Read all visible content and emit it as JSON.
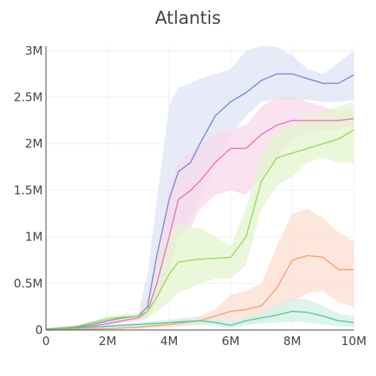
{
  "chart_data": {
    "type": "line",
    "title": "Atlantis",
    "xlabel": "",
    "ylabel": "",
    "xlim": [
      0,
      10000000
    ],
    "ylim": [
      0,
      3050000
    ],
    "grid": true,
    "legend": "none",
    "xticks": [
      {
        "value": 0,
        "label": "0"
      },
      {
        "value": 2000000,
        "label": "2M"
      },
      {
        "value": 4000000,
        "label": "4M"
      },
      {
        "value": 6000000,
        "label": "6M"
      },
      {
        "value": 8000000,
        "label": "8M"
      },
      {
        "value": 10000000,
        "label": "10M"
      }
    ],
    "yticks": [
      {
        "value": 0,
        "label": "0"
      },
      {
        "value": 500000,
        "label": "0.5M"
      },
      {
        "value": 1000000,
        "label": "1M"
      },
      {
        "value": 1500000,
        "label": "1.5M"
      },
      {
        "value": 2000000,
        "label": "2M"
      },
      {
        "value": 2500000,
        "label": "2.5M"
      },
      {
        "value": 3000000,
        "label": "3M"
      }
    ],
    "series": [
      {
        "color": "#7a8fd0",
        "band_color": "#dfe3f4",
        "x": [
          0,
          1000000,
          1500000,
          2000000,
          2500000,
          3000000,
          3300000,
          3600000,
          4000000,
          4300000,
          4700000,
          5000000,
          5500000,
          6000000,
          6500000,
          7000000,
          7500000,
          8000000,
          8500000,
          9000000,
          9500000,
          10000000
        ],
        "mean": [
          10000,
          30000,
          60000,
          100000,
          130000,
          150000,
          250000,
          800000,
          1400000,
          1700000,
          1800000,
          2000000,
          2300000,
          2450000,
          2550000,
          2680000,
          2750000,
          2750000,
          2700000,
          2650000,
          2650000,
          2740000
        ],
        "upper": [
          15000,
          40000,
          80000,
          120000,
          150000,
          180000,
          600000,
          1400000,
          2400000,
          2600000,
          2650000,
          2700000,
          2750000,
          2800000,
          3000000,
          3050000,
          3040000,
          2950000,
          2800000,
          2750000,
          2870000,
          3000000
        ],
        "lower": [
          5000,
          20000,
          40000,
          80000,
          110000,
          120000,
          150000,
          300000,
          700000,
          1000000,
          1200000,
          1400000,
          1750000,
          2100000,
          2300000,
          2450000,
          2480000,
          2470000,
          2470000,
          2450000,
          2450000,
          2470000
        ]
      },
      {
        "color": "#e878b8",
        "band_color": "#f8d8ec",
        "x": [
          0,
          1000000,
          1500000,
          2000000,
          2500000,
          3000000,
          3300000,
          3600000,
          4000000,
          4300000,
          4700000,
          5000000,
          5500000,
          6000000,
          6500000,
          7000000,
          7500000,
          8000000,
          8500000,
          9000000,
          9500000,
          10000000
        ],
        "mean": [
          5000,
          20000,
          40000,
          70000,
          100000,
          130000,
          200000,
          500000,
          1000000,
          1400000,
          1500000,
          1600000,
          1800000,
          1950000,
          1950000,
          2100000,
          2200000,
          2250000,
          2250000,
          2250000,
          2250000,
          2270000
        ],
        "upper": [
          8000,
          30000,
          55000,
          90000,
          120000,
          160000,
          350000,
          800000,
          1500000,
          1800000,
          1900000,
          2000000,
          2100000,
          2150000,
          2200000,
          2400000,
          2500000,
          2500000,
          2450000,
          2400000,
          2350000,
          2350000
        ],
        "lower": [
          2000,
          10000,
          25000,
          50000,
          80000,
          100000,
          120000,
          300000,
          650000,
          1000000,
          1100000,
          1300000,
          1450000,
          1500000,
          1450000,
          1650000,
          1850000,
          2050000,
          2100000,
          2150000,
          2150000,
          2200000
        ]
      },
      {
        "color": "#9fd95c",
        "band_color": "#e3f4cf",
        "x": [
          0,
          1000000,
          1500000,
          2000000,
          2500000,
          3000000,
          3300000,
          3600000,
          4000000,
          4300000,
          4700000,
          5000000,
          5500000,
          6000000,
          6500000,
          7000000,
          7500000,
          8000000,
          8500000,
          9000000,
          9500000,
          10000000
        ],
        "mean": [
          10000,
          40000,
          80000,
          120000,
          140000,
          150000,
          200000,
          350000,
          600000,
          730000,
          750000,
          760000,
          770000,
          780000,
          1000000,
          1600000,
          1850000,
          1900000,
          1950000,
          2000000,
          2050000,
          2150000
        ],
        "upper": [
          15000,
          50000,
          100000,
          150000,
          170000,
          180000,
          300000,
          600000,
          1050000,
          1150000,
          1100000,
          1100000,
          1000000,
          900000,
          1300000,
          1900000,
          2150000,
          2200000,
          2300000,
          2350000,
          2400000,
          2450000
        ],
        "lower": [
          5000,
          20000,
          60000,
          90000,
          110000,
          120000,
          130000,
          200000,
          300000,
          400000,
          450000,
          500000,
          550000,
          550000,
          700000,
          1300000,
          1550000,
          1650000,
          1800000,
          1850000,
          1800000,
          1800000
        ]
      },
      {
        "color": "#f5a37a",
        "band_color": "#fcdfd0",
        "x": [
          0,
          1000000,
          2000000,
          3000000,
          4000000,
          5000000,
          5500000,
          6000000,
          6500000,
          7000000,
          7500000,
          8000000,
          8500000,
          9000000,
          9500000,
          10000000
        ],
        "mean": [
          0,
          5000,
          15000,
          30000,
          60000,
          100000,
          150000,
          200000,
          220000,
          260000,
          450000,
          750000,
          800000,
          780000,
          650000,
          650000
        ],
        "upper": [
          0,
          10000,
          25000,
          50000,
          90000,
          150000,
          220000,
          380000,
          420000,
          500000,
          900000,
          1250000,
          1300000,
          1200000,
          1050000,
          950000
        ],
        "lower": [
          0,
          0,
          5000,
          15000,
          30000,
          50000,
          80000,
          80000,
          60000,
          80000,
          150000,
          300000,
          400000,
          420000,
          300000,
          250000
        ]
      },
      {
        "color": "#58c9a0",
        "band_color": "#d2f0e4",
        "x": [
          0,
          1000000,
          2000000,
          3000000,
          4000000,
          4500000,
          5000000,
          5500000,
          6000000,
          6500000,
          7000000,
          7500000,
          8000000,
          8500000,
          9000000,
          9500000,
          10000000
        ],
        "mean": [
          10000,
          20000,
          40000,
          60000,
          80000,
          90000,
          100000,
          80000,
          50000,
          100000,
          130000,
          160000,
          200000,
          190000,
          150000,
          100000,
          80000
        ],
        "upper": [
          15000,
          30000,
          60000,
          80000,
          110000,
          130000,
          140000,
          120000,
          90000,
          150000,
          200000,
          280000,
          340000,
          330000,
          260000,
          180000,
          150000
        ],
        "lower": [
          5000,
          10000,
          20000,
          40000,
          50000,
          50000,
          60000,
          40000,
          20000,
          50000,
          70000,
          80000,
          90000,
          80000,
          60000,
          40000,
          30000
        ]
      }
    ]
  }
}
